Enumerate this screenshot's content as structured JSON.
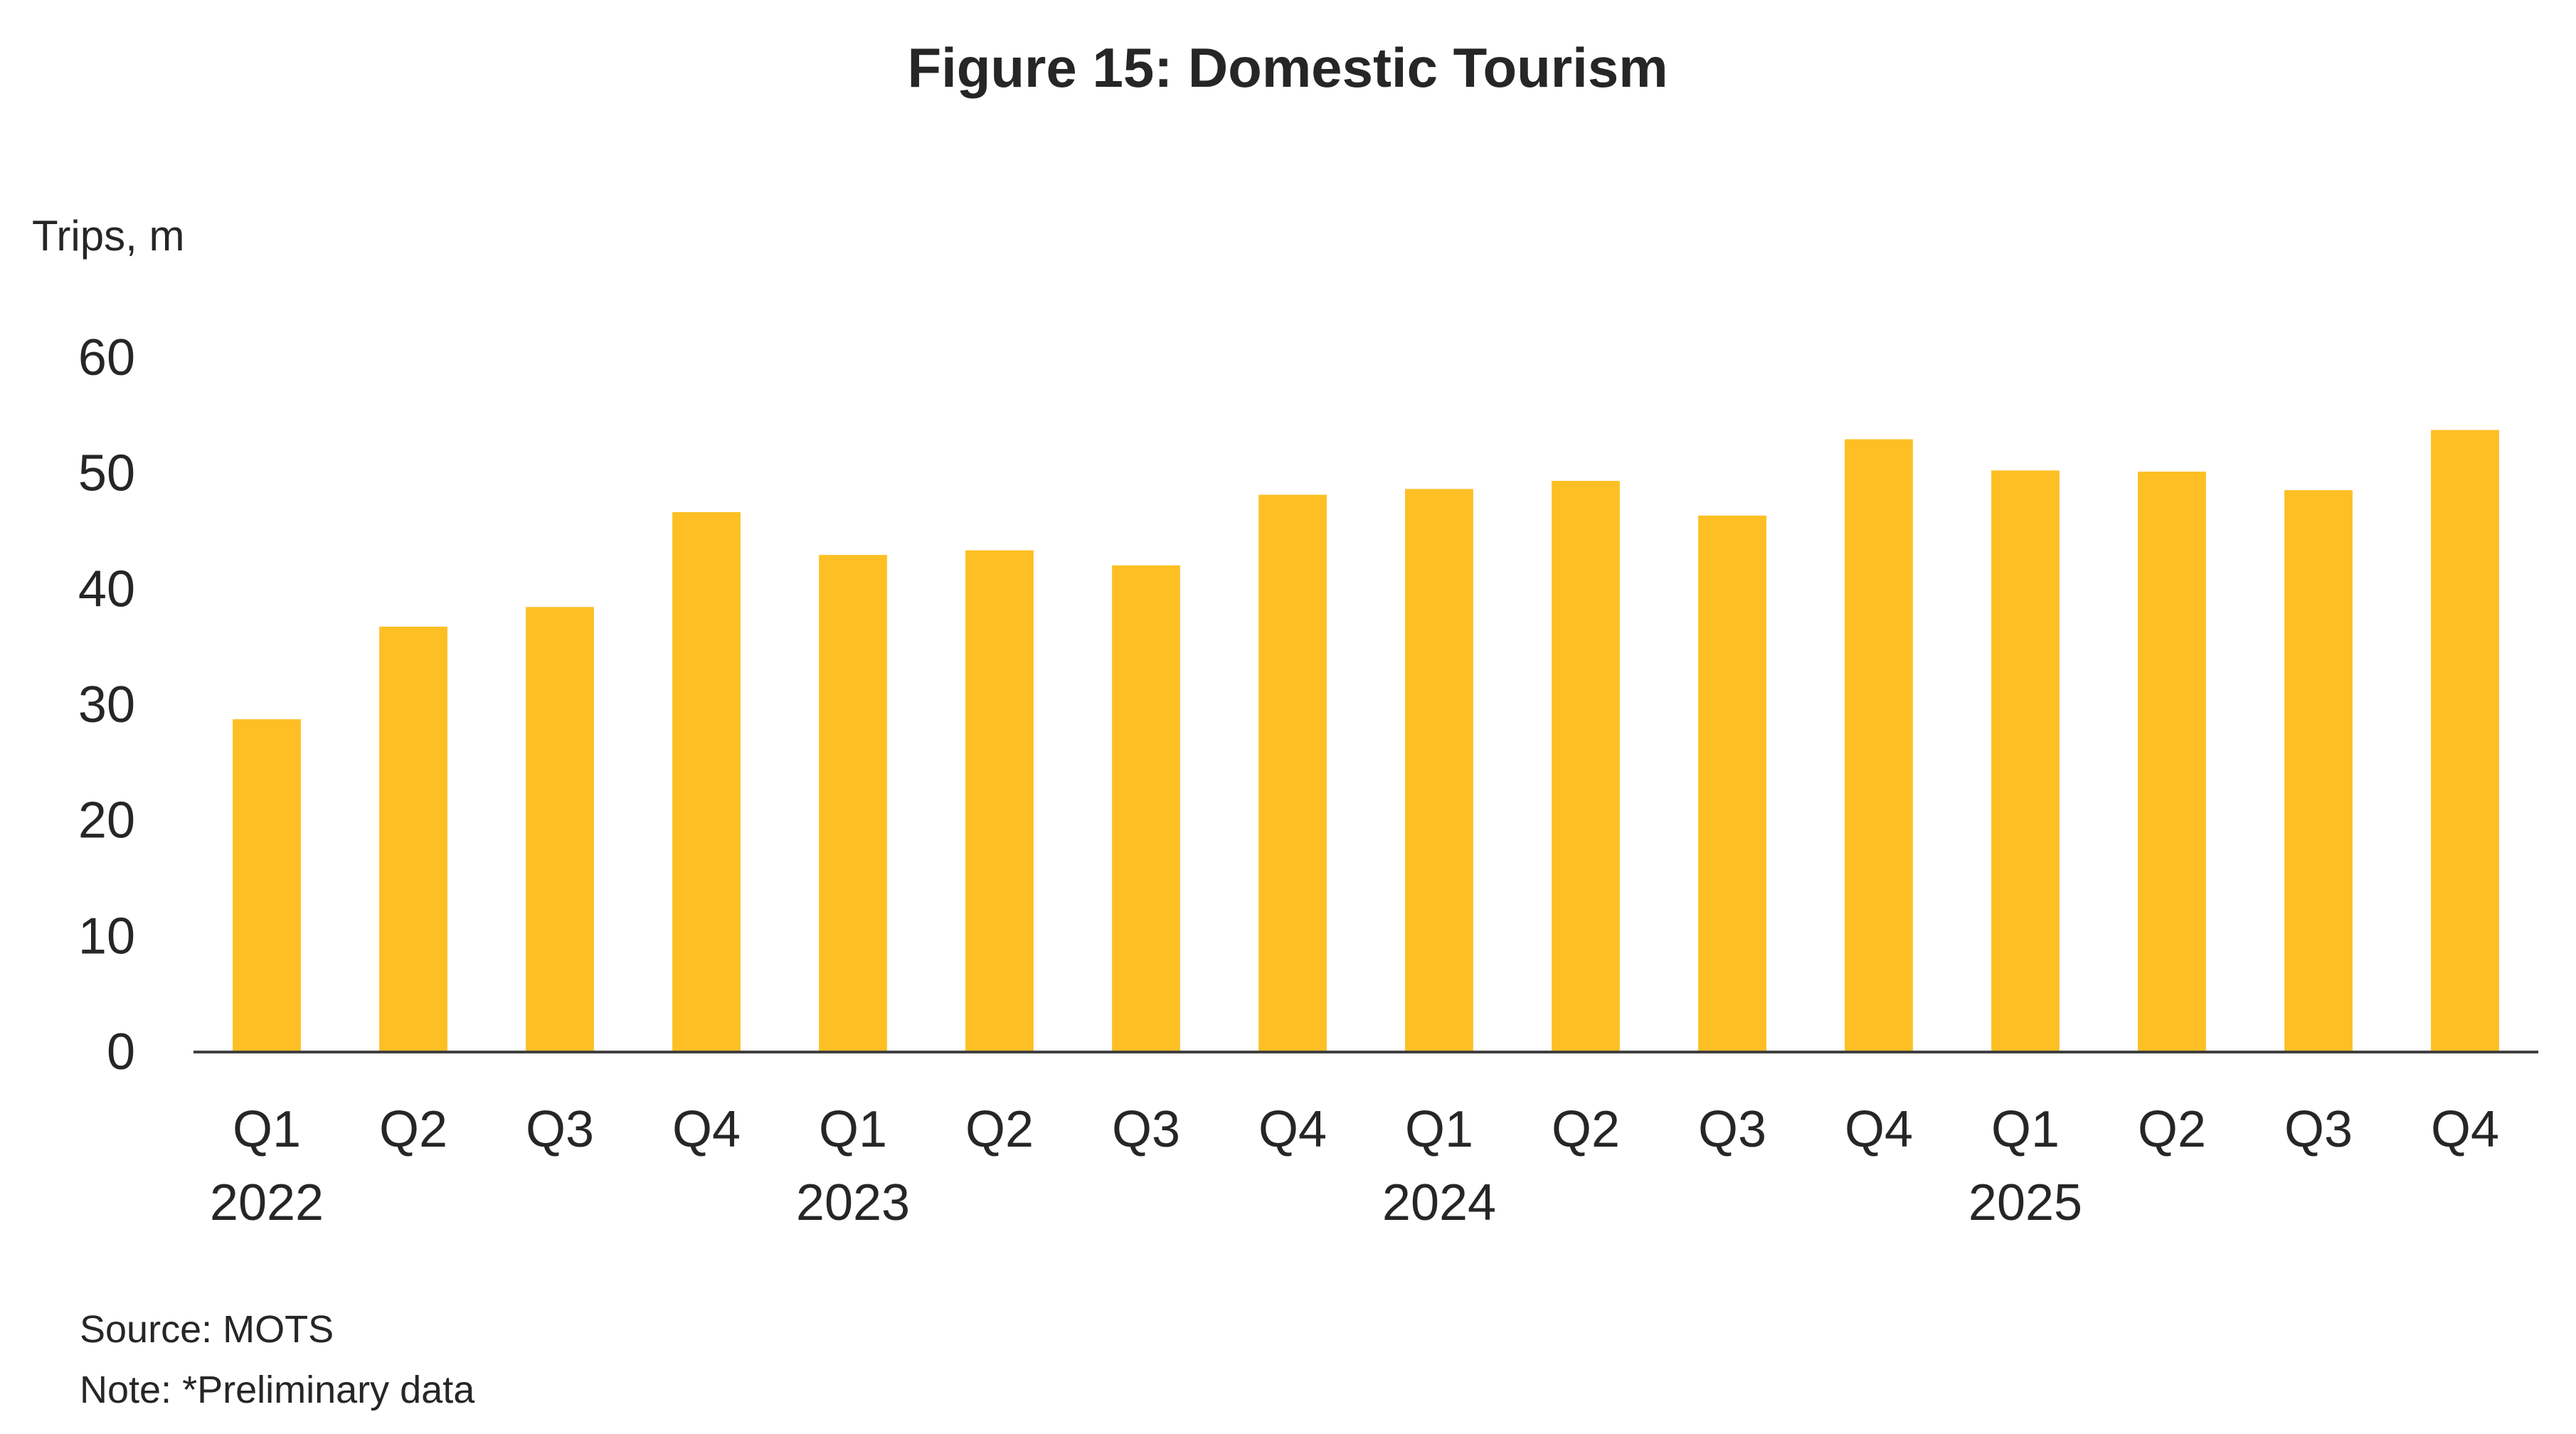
{
  "chart_data": {
    "type": "bar",
    "title": "Figure 15: Domestic Tourism",
    "ylabel": "Trips, m",
    "xlabel": "",
    "ylim": [
      0,
      60
    ],
    "yticks": [
      0,
      10,
      20,
      30,
      40,
      50,
      60
    ],
    "grid": false,
    "categories": [
      "Q1",
      "Q2",
      "Q3",
      "Q4",
      "Q1",
      "Q2",
      "Q3",
      "Q4",
      "Q1",
      "Q2",
      "Q3",
      "Q4",
      "Q1",
      "Q2",
      "Q3",
      "Q4"
    ],
    "groups": [
      {
        "label": "2022",
        "start": 0,
        "end": 0
      },
      {
        "label": "2023",
        "start": 3,
        "end": 5
      },
      {
        "label": "2024",
        "start": 7,
        "end": 9
      },
      {
        "label": "2025",
        "start": 11,
        "end": 13
      }
    ],
    "values": [
      28.7,
      36.7,
      38.4,
      46.6,
      42.9,
      43.3,
      42.0,
      48.1,
      48.6,
      49.3,
      46.3,
      52.9,
      50.2,
      50.1,
      48.5,
      53.7
    ],
    "bar_color": "#FDBF24",
    "axis_color": "#404040"
  },
  "footer": {
    "source": "Source: MOTS",
    "note": "Note: *Preliminary data"
  }
}
